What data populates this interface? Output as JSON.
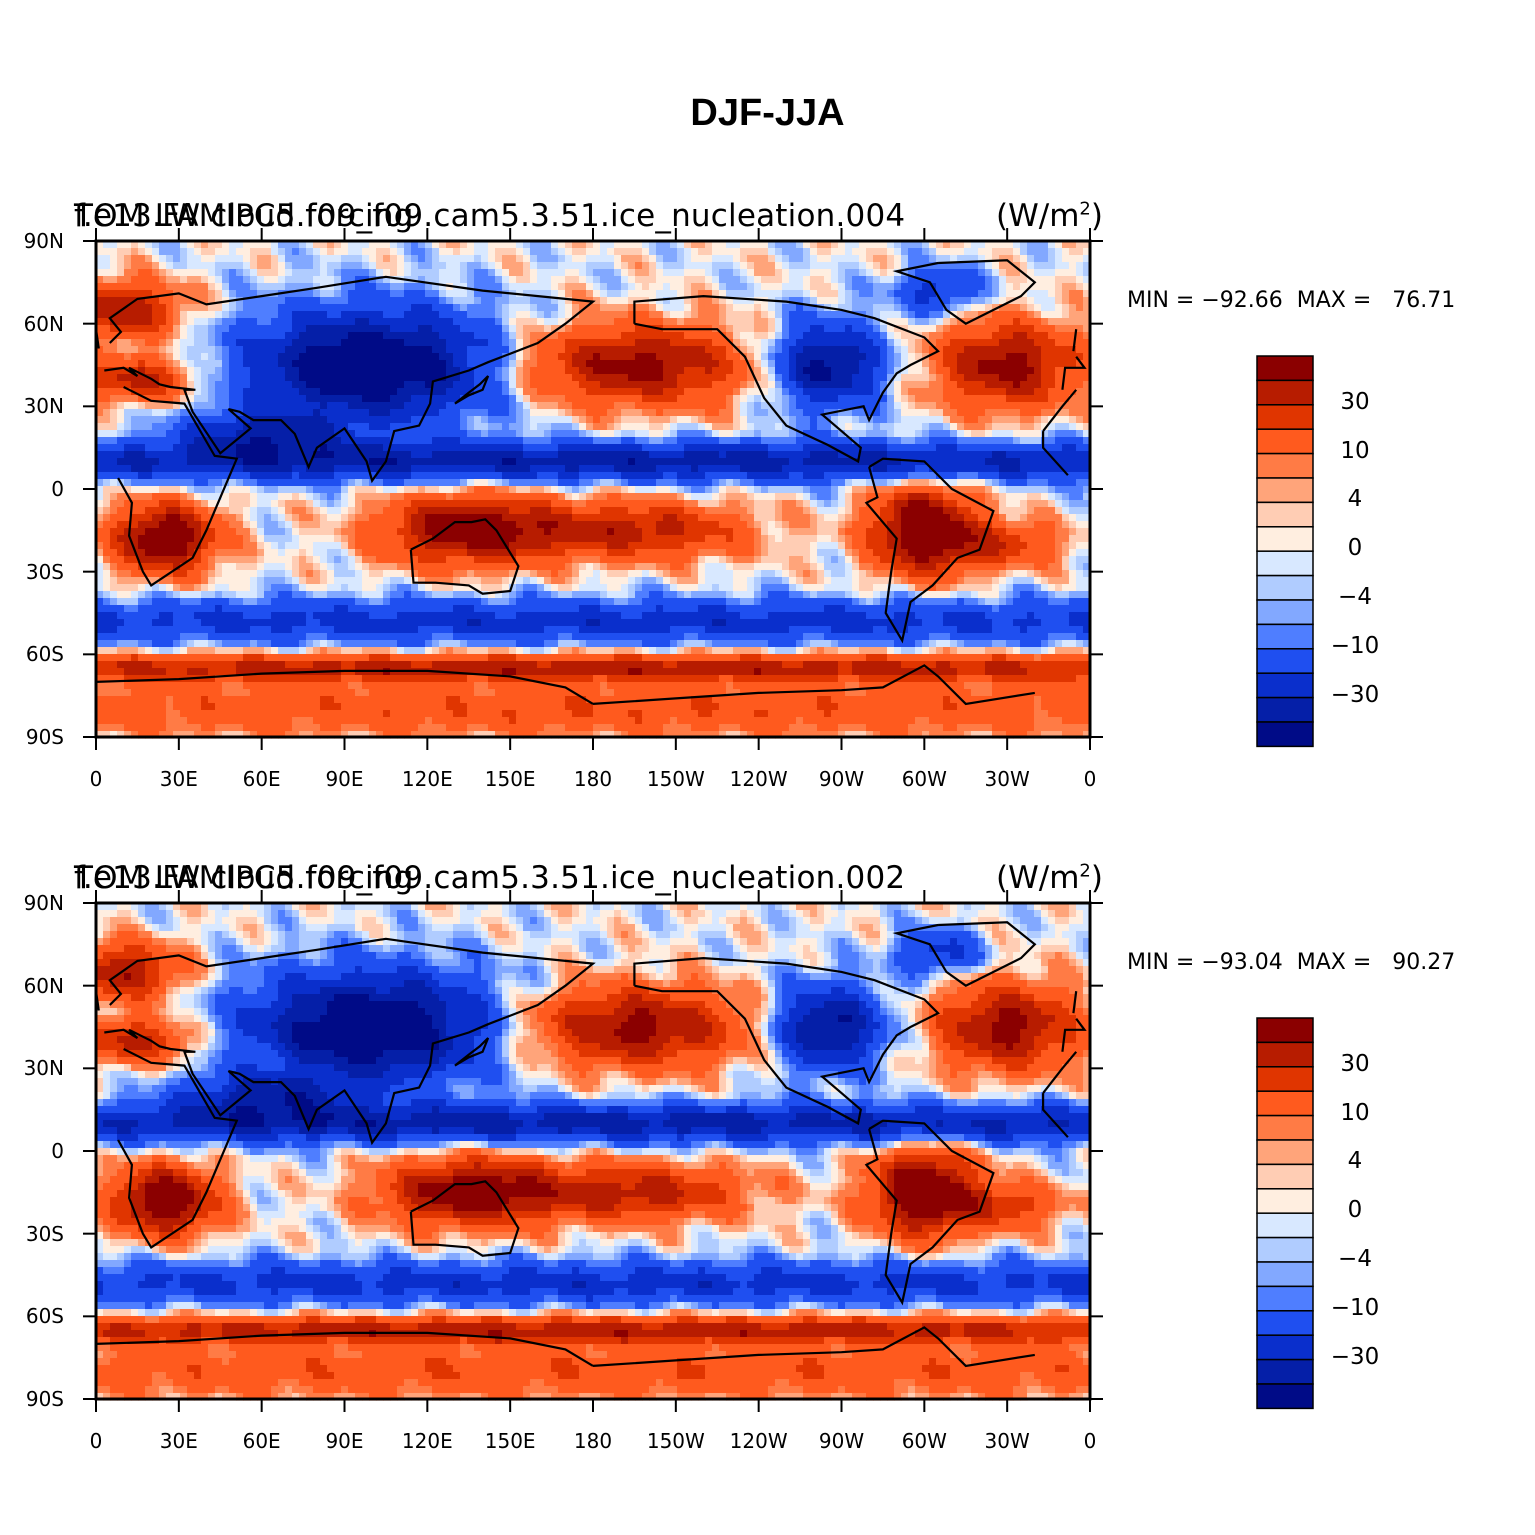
{
  "title": "DJF-JJA",
  "panels": [
    {
      "title": "f.e13.FAMIPC5.f09_f09.cam5.3.51.ice_nucleation.004",
      "overlay_title": "TOM LW cloud forcing",
      "units_main": "(W/m",
      "units_sup": "2",
      "units_close": ")",
      "stats": "MIN = −92.66  MAX =   76.71",
      "chart_data": {
        "type": "heatmap",
        "min": -92.66,
        "max": 76.71
      }
    },
    {
      "title": "f.e13.FAMIPC5.f09_f09.cam5.3.51.ice_nucleation.002",
      "overlay_title": "TOM LW cloud forcing",
      "units_main": "(W/m",
      "units_sup": "2",
      "units_close": ")",
      "stats": "MIN = −93.04  MAX =   90.27",
      "chart_data": {
        "type": "heatmap",
        "min": -93.04,
        "max": 90.27
      }
    }
  ],
  "lat_ticks": [
    "90N",
    "60N",
    "30N",
    "0",
    "30S",
    "60S",
    "90S"
  ],
  "lon_ticks": [
    "0",
    "30E",
    "60E",
    "90E",
    "120E",
    "150E",
    "180",
    "150W",
    "120W",
    "90W",
    "60W",
    "30W",
    "0"
  ],
  "legend_labels": [
    "30",
    "10",
    "4",
    "0",
    "−4",
    "−10",
    "−30"
  ],
  "legend_colors": [
    "#8b0000",
    "#b71c00",
    "#e03500",
    "#ff5a1e",
    "#ff7b45",
    "#ffa47a",
    "#ffcdb4",
    "#ffeee0",
    "#d8e8ff",
    "#b0ccff",
    "#82a8ff",
    "#4f7eff",
    "#1f4ff0",
    "#0a2fcc",
    "#051fa8",
    "#000b87"
  ]
}
